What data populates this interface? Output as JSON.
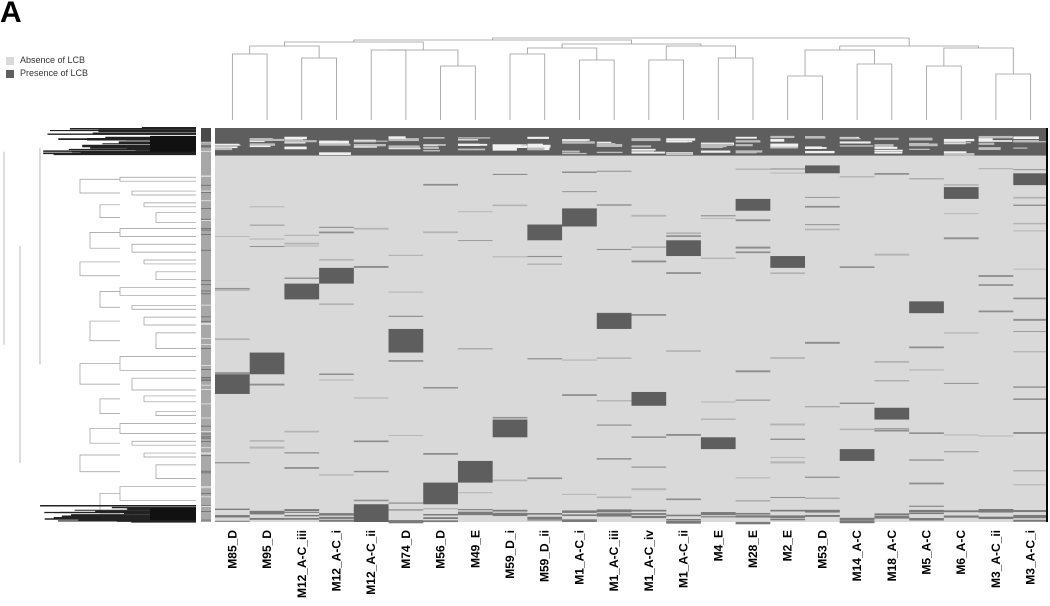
{
  "panel_label": "A",
  "colors": {
    "absence": "#d9d9d9",
    "presence": "#5e5e5e",
    "sidebar": "#a8a8a8",
    "tree": "#9a9a9a"
  },
  "legend": [
    {
      "label": "Absence of LCB",
      "color": "#d9d9d9"
    },
    {
      "label": "Presence of LCB",
      "color": "#5e5e5e"
    }
  ],
  "chart_data": {
    "type": "heatmap",
    "title": "",
    "xlabel": "",
    "ylabel": "",
    "values": [
      "Absence of LCB",
      "Presence of LCB"
    ],
    "columns": [
      "M85_D",
      "M95_D",
      "M12_A-C_iii",
      "M12_A-C_i",
      "M12_A-C_ii",
      "M74_D",
      "M56_D",
      "M49_E",
      "M59_D_i",
      "M59_D_ii",
      "M1_A-C_i",
      "M1_A-C_iii",
      "M1_A-C_iv",
      "M1_A-C_ii",
      "M4_E",
      "M28_E",
      "M2_E",
      "M53_D",
      "M14_A-C",
      "M18_A-C",
      "M5_A-C",
      "M6_A-C",
      "M3_A-C_ii",
      "M3_A-C_i"
    ],
    "core_presence_rows": [
      0,
      0.07
    ],
    "unique_presence_blocks": [
      {
        "column": "M53_D",
        "rows": [
          0.095,
          0.115
        ]
      },
      {
        "column": "M3_A-C_i",
        "rows": [
          0.115,
          0.145
        ]
      },
      {
        "column": "M6_A-C",
        "rows": [
          0.15,
          0.18
        ]
      },
      {
        "column": "M28_E",
        "rows": [
          0.18,
          0.21
        ]
      },
      {
        "column": "M1_A-C_i",
        "rows": [
          0.205,
          0.25
        ]
      },
      {
        "column": "M59_D_ii",
        "rows": [
          0.245,
          0.285
        ]
      },
      {
        "column": "M1_A-C_ii",
        "rows": [
          0.285,
          0.325
        ]
      },
      {
        "column": "M2_E",
        "rows": [
          0.325,
          0.355
        ]
      },
      {
        "column": "M12_A-C_i",
        "rows": [
          0.355,
          0.395
        ]
      },
      {
        "column": "M12_A-C_iii",
        "rows": [
          0.395,
          0.435
        ]
      },
      {
        "column": "M5_A-C",
        "rows": [
          0.44,
          0.47
        ]
      },
      {
        "column": "M1_A-C_iii",
        "rows": [
          0.47,
          0.51
        ]
      },
      {
        "column": "M74_D",
        "rows": [
          0.51,
          0.57
        ]
      },
      {
        "column": "M95_D",
        "rows": [
          0.57,
          0.625
        ]
      },
      {
        "column": "M85_D",
        "rows": [
          0.625,
          0.675
        ]
      },
      {
        "column": "M1_A-C_iv",
        "rows": [
          0.67,
          0.705
        ]
      },
      {
        "column": "M18_A-C",
        "rows": [
          0.71,
          0.74
        ]
      },
      {
        "column": "M59_D_i",
        "rows": [
          0.74,
          0.785
        ]
      },
      {
        "column": "M4_E",
        "rows": [
          0.785,
          0.815
        ]
      },
      {
        "column": "M14_A-C",
        "rows": [
          0.815,
          0.845
        ]
      },
      {
        "column": "M49_E",
        "rows": [
          0.845,
          0.9
        ]
      },
      {
        "column": "M56_D",
        "rows": [
          0.9,
          0.955
        ]
      },
      {
        "column": "M12_A-C_ii",
        "rows": [
          0.955,
          1.0
        ]
      }
    ],
    "grid": false,
    "legend_position": "top-left"
  }
}
